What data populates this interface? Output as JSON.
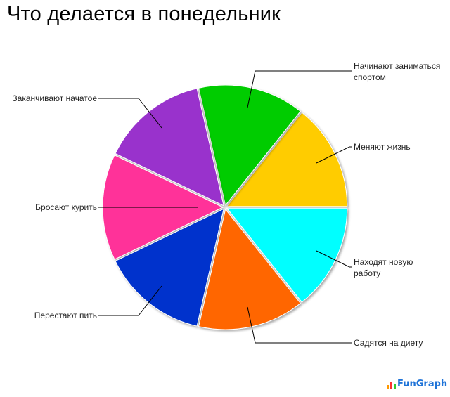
{
  "chart_data": {
    "type": "pie",
    "title": "Что делается в понедельник",
    "slices": [
      {
        "label": "Меняют жизнь",
        "value": 1,
        "color": "#ffcc00"
      },
      {
        "label": "Начинают заниматься спортом",
        "value": 1,
        "color": "#00cc00"
      },
      {
        "label": "Заканчивают начатое",
        "value": 1,
        "color": "#9933cc"
      },
      {
        "label": "Бросают курить",
        "value": 1,
        "color": "#ff3399"
      },
      {
        "label": "Перестают пить",
        "value": 1,
        "color": "#0033cc"
      },
      {
        "label": "Садятся на диету",
        "value": 1,
        "color": "#ff6600"
      },
      {
        "label": "Находят новую работу",
        "value": 1,
        "color": "#00ffff"
      }
    ],
    "start_angle": "3 o'clock",
    "direction": "counterclockwise",
    "legend": "none"
  },
  "logo": "FunGraph"
}
